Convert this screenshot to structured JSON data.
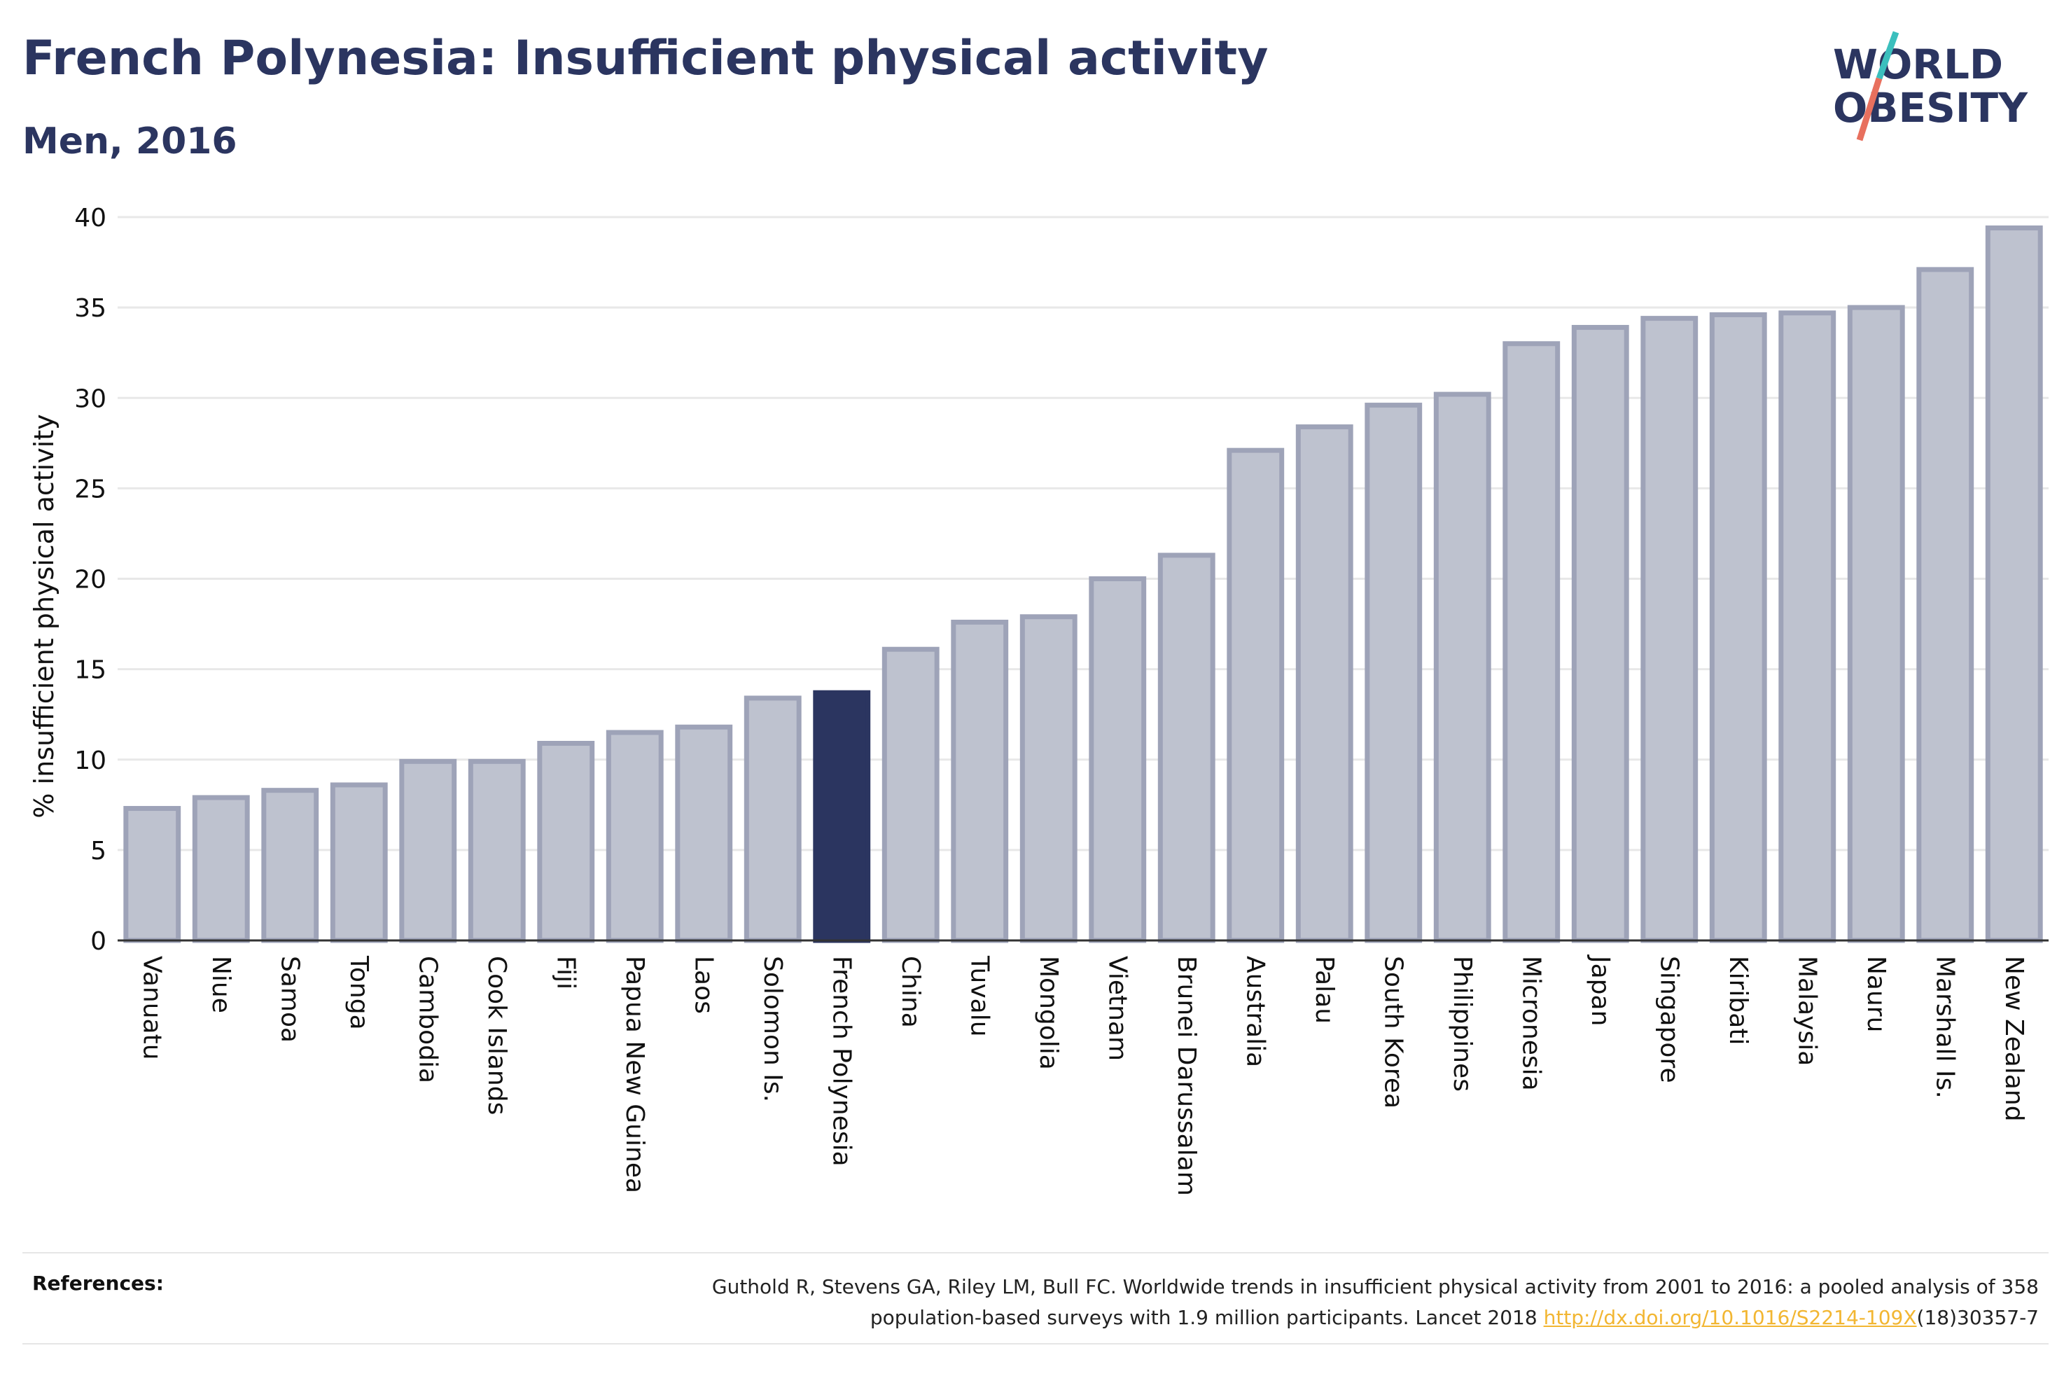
{
  "header": {
    "title": "French Polynesia: Insufficient physical activity",
    "subtitle": "Men, 2016"
  },
  "logo": {
    "line1": "WORLD",
    "line2": "OBESITY",
    "text_color": "#2b3560",
    "slash_top_color": "#3bbfbd",
    "slash_bottom_color": "#e8705e"
  },
  "colors": {
    "bar": "#bec2cf",
    "bar_outline": "#9ea3b8",
    "highlight": "#2b3560",
    "grid": "#e8e8e8",
    "axis": "#333333"
  },
  "chart_data": {
    "type": "bar",
    "title": "French Polynesia: Insufficient physical activity",
    "subtitle": "Men, 2016",
    "xlabel": "",
    "ylabel": "% insufficient physical activity",
    "ylim": [
      0,
      40
    ],
    "yticks": [
      0,
      5,
      10,
      15,
      20,
      25,
      30,
      35,
      40
    ],
    "grid": true,
    "highlight": "French Polynesia",
    "categories": [
      "Vanuatu",
      "Niue",
      "Samoa",
      "Tonga",
      "Cambodia",
      "Cook Islands",
      "Fiji",
      "Papua New Guinea",
      "Laos",
      "Solomon Is.",
      "French Polynesia",
      "China",
      "Tuvalu",
      "Mongolia",
      "Vietnam",
      "Brunei Darussalam",
      "Australia",
      "Palau",
      "South Korea",
      "Philippines",
      "Micronesia",
      "Japan",
      "Singapore",
      "Kiribati",
      "Malaysia",
      "Nauru",
      "Marshall Is.",
      "New Zealand"
    ],
    "values": [
      7.3,
      7.9,
      8.3,
      8.6,
      9.9,
      9.9,
      10.9,
      11.5,
      11.8,
      13.4,
      13.7,
      16.1,
      17.6,
      17.9,
      20.0,
      21.3,
      27.1,
      28.4,
      29.6,
      30.2,
      33.0,
      33.9,
      34.4,
      34.6,
      34.7,
      35.0,
      37.1,
      39.4
    ]
  },
  "references": {
    "label": "References:",
    "text_line1": "Guthold R, Stevens GA, Riley LM, Bull FC. Worldwide trends in insufficient physical activity from 2001 to 2016: a pooled analysis of 358",
    "text_line2_before": "population-based surveys with 1.9 million participants. Lancet 2018 ",
    "link": "http://dx.doi.org/10.1016/S2214-109X",
    "text_line2_after": "(18)30357-7"
  }
}
